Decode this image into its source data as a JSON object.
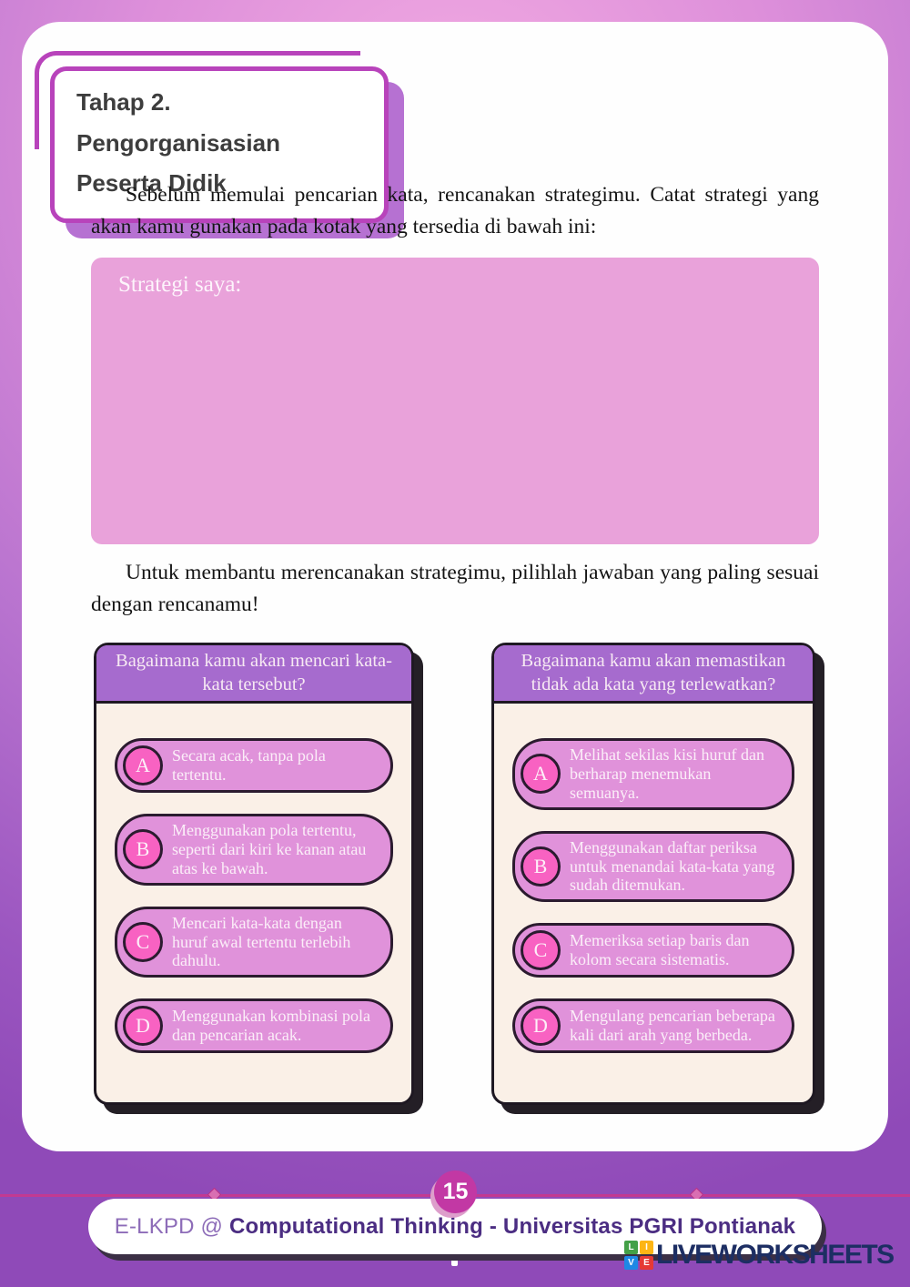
{
  "title_box": {
    "line1": "Tahap 2. Pengorganisasian",
    "line2": "Peserta Didik"
  },
  "intro_paragraph": "Sebelum memulai pencarian kata, rencanakan strategimu. Catat strategi yang akan kamu gunakan pada kotak yang tersedia di bawah ini:",
  "strategy_box": {
    "label": "Strategi saya:"
  },
  "second_paragraph": "Untuk membantu merencanakan strategimu, pilihlah jawaban yang paling sesuai dengan rencanamu!",
  "question_cards": [
    {
      "question": "Bagaimana kamu akan mencari kata-kata tersebut?",
      "options": [
        {
          "letter": "A",
          "text": "Secara acak, tanpa pola tertentu."
        },
        {
          "letter": "B",
          "text": "Menggunakan pola tertentu, seperti dari kiri ke kanan atau atas ke bawah."
        },
        {
          "letter": "C",
          "text": "Mencari kata-kata dengan huruf awal tertentu terlebih dahulu."
        },
        {
          "letter": "D",
          "text": "Menggunakan kombinasi pola dan pencarian acak."
        }
      ]
    },
    {
      "question": "Bagaimana kamu akan memastikan tidak ada kata yang terlewatkan?",
      "options": [
        {
          "letter": "A",
          "text": "Melihat sekilas kisi huruf dan berharap menemukan semuanya."
        },
        {
          "letter": "B",
          "text": "Menggunakan daftar periksa untuk menandai kata-kata yang sudah ditemukan."
        },
        {
          "letter": "C",
          "text": "Memeriksa setiap baris dan kolom secara sistematis."
        },
        {
          "letter": "D",
          "text": "Mengulang pencarian beberapa kali dari arah yang berbeda."
        }
      ]
    }
  ],
  "footer": {
    "page_number": "15",
    "brand_prefix": "E-LKPD @ ",
    "brand_bold": "Computational Thinking - Universitas PGRI Pontianak"
  },
  "liveworksheets": {
    "wordmark": "LIVEWORKSHEETS",
    "tiles": [
      {
        "letter": "L",
        "color": "#43a047"
      },
      {
        "letter": "I",
        "color": "#fdb515"
      },
      {
        "letter": "V",
        "color": "#1e88e5"
      },
      {
        "letter": "E",
        "color": "#e53935"
      }
    ]
  },
  "colors": {
    "accent_magenta": "#b843bb",
    "accent_purple_header": "#a66bce",
    "pill_pink": "#e092da",
    "circle_pink": "#f862c2",
    "strategy_pink": "#e9a2da",
    "footer_line": "#c23a92",
    "badge": "#c238a4",
    "brand_dark_purple": "#4b2d82",
    "wordmark_navy": "#1d2e63"
  }
}
